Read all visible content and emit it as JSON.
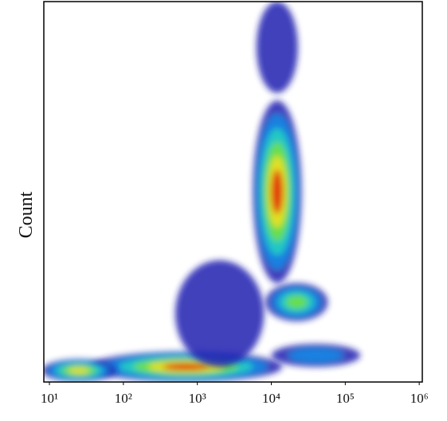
{
  "chart_data": {
    "type": "density",
    "y_label": "Count",
    "log_x": true,
    "xlim": [
      8.4,
      1100000
    ],
    "xticks": [
      {
        "value": 10,
        "label": "10¹"
      },
      {
        "value": 100,
        "label": "10²"
      },
      {
        "value": 1000,
        "label": "10³"
      },
      {
        "value": 10000,
        "label": "10⁴"
      },
      {
        "value": 100000,
        "label": "10⁵"
      },
      {
        "value": 1000000,
        "label": "10⁶"
      }
    ],
    "ylim": [
      0,
      100
    ],
    "levels": [
      "#1c1cb0",
      "#1a8ae6",
      "#22d0c0",
      "#70e040",
      "#f0e020",
      "#e02810"
    ],
    "clusters": [
      {
        "x": 12000,
        "y": 50,
        "x_spread": 0.33,
        "y_spread": 24,
        "max_level": 5
      },
      {
        "x": 12000,
        "y": 88,
        "x_spread": 0.28,
        "y_spread": 12,
        "max_level": 0
      },
      {
        "x": 22000,
        "y": 21,
        "x_spread": 0.42,
        "y_spread": 5,
        "max_level": 3
      },
      {
        "x": 700,
        "y": 4,
        "x_spread": 1.3,
        "y_spread": 4,
        "max_level": 5
      },
      {
        "x": 25,
        "y": 3,
        "x_spread": 0.5,
        "y_spread": 3,
        "max_level": 4
      },
      {
        "x": 40000,
        "y": 7,
        "x_spread": 0.6,
        "y_spread": 3,
        "max_level": 1
      },
      {
        "x": 2000,
        "y": 18,
        "x_spread": 0.6,
        "y_spread": 14,
        "max_level": 0
      }
    ]
  }
}
